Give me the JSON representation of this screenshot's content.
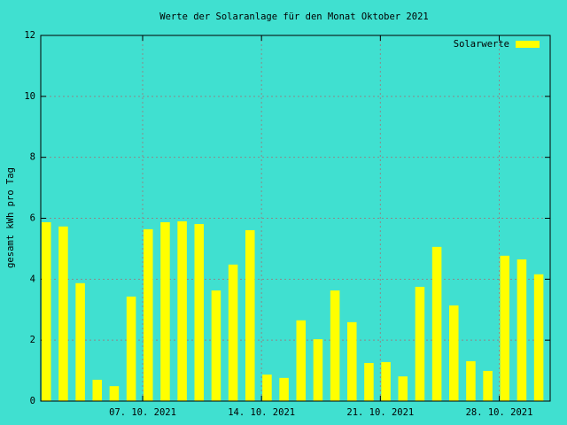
{
  "chart_data": {
    "type": "bar",
    "title": "Werte der Solaranlage für den Monat Oktober 2021",
    "y_label": "gesamt kWh pro Tag",
    "x": [
      "2021-10-01",
      "2021-10-02",
      "2021-10-03",
      "2021-10-04",
      "2021-10-05",
      "2021-10-06",
      "2021-10-07",
      "2021-10-08",
      "2021-10-09",
      "2021-10-10",
      "2021-10-11",
      "2021-10-12",
      "2021-10-13",
      "2021-10-14",
      "2021-10-15",
      "2021-10-16",
      "2021-10-17",
      "2021-10-18",
      "2021-10-19",
      "2021-10-20",
      "2021-10-21",
      "2021-10-22",
      "2021-10-23",
      "2021-10-24",
      "2021-10-25",
      "2021-10-26",
      "2021-10-27",
      "2021-10-28",
      "2021-10-29",
      "2021-10-30"
    ],
    "series": [
      {
        "name": "Solarwerte",
        "color": "#ffff00",
        "values": [
          5.87,
          5.73,
          3.87,
          0.7,
          0.49,
          3.43,
          5.64,
          5.87,
          5.9,
          5.81,
          3.63,
          4.48,
          5.61,
          0.87,
          0.76,
          2.65,
          2.03,
          3.63,
          2.59,
          1.25,
          1.28,
          0.81,
          3.75,
          5.06,
          3.14,
          1.31,
          0.99,
          4.77,
          4.65,
          4.16
        ]
      }
    ],
    "xlim": [
      "2021-10-01",
      "2021-10-31"
    ],
    "xticks": [
      {
        "value": "2021-10-07",
        "label": "07. 10. 2021"
      },
      {
        "value": "2021-10-14",
        "label": "14. 10. 2021"
      },
      {
        "value": "2021-10-21",
        "label": "21. 10. 2021"
      },
      {
        "value": "2021-10-28",
        "label": "28. 10. 2021"
      }
    ],
    "ylim": [
      0,
      12
    ],
    "yticks": [
      0,
      2,
      4,
      6,
      8,
      10,
      12
    ],
    "grid": true,
    "legend": "top-right",
    "background": "#40e0d0"
  }
}
